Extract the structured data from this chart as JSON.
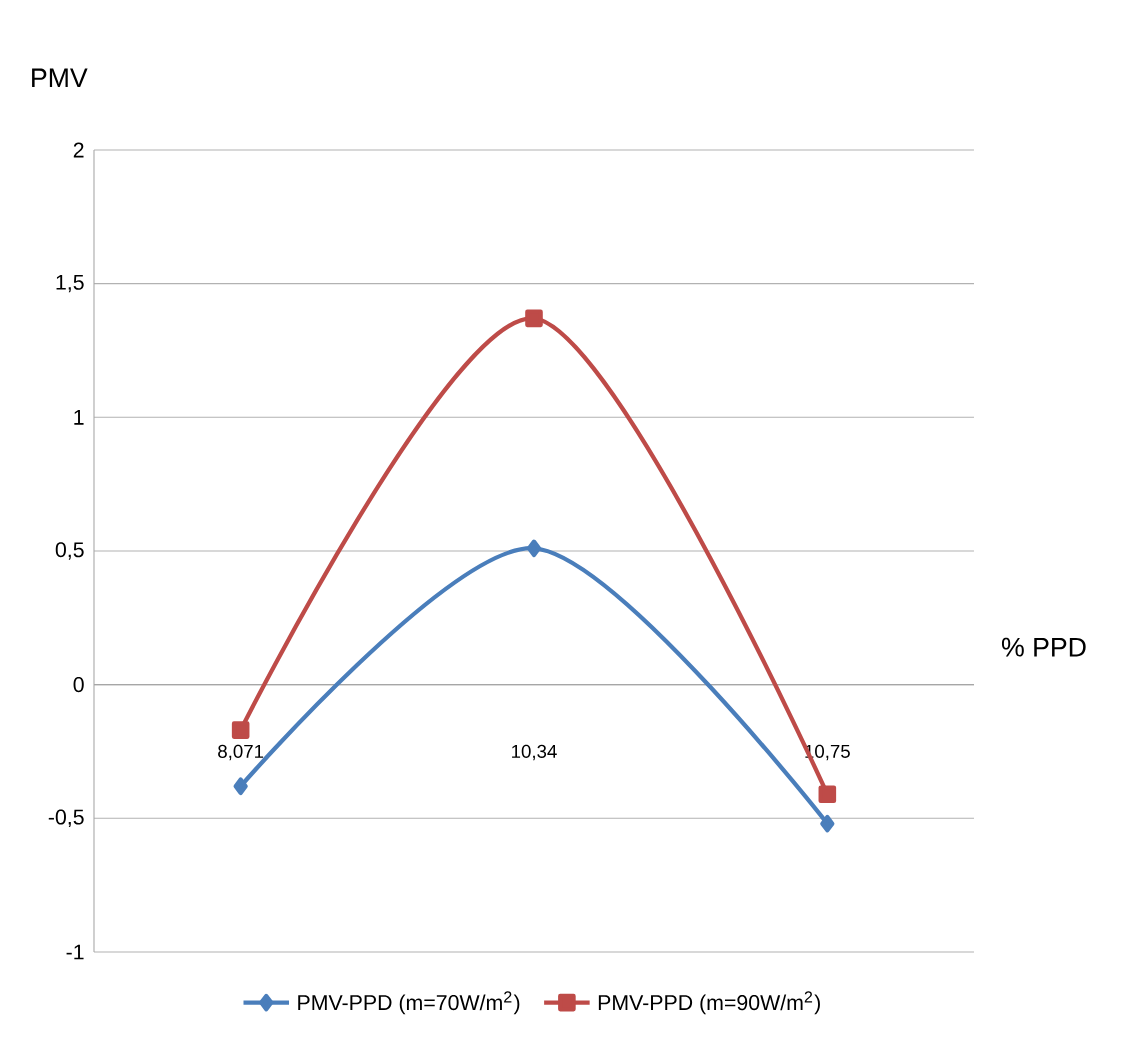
{
  "chart_data": {
    "type": "line",
    "ylabel": "PMV",
    "xlabel": "% PPD",
    "categories": [
      "8,071",
      "10,34",
      "10,75"
    ],
    "series": [
      {
        "name": "PMV-PPD (m=70W/m$^{2}$)",
        "color": "#4a7ebb",
        "marker": "diamond",
        "values": [
          -0.38,
          0.51,
          -0.52
        ]
      },
      {
        "name": "PMV-PPD (m=90W/m$^{2}$)",
        "color": "#be4b48",
        "marker": "square",
        "values": [
          -0.17,
          1.37,
          -0.41
        ]
      }
    ],
    "ylim": [
      -1,
      2
    ],
    "yticks": [
      -1,
      {
        "value": -0.5,
        "label": "-0,5"
      },
      0,
      {
        "value": 0.5,
        "label": "0,5"
      },
      1,
      {
        "value": 1.5,
        "label": "1,5"
      },
      2
    ],
    "grid": "y",
    "legend": "bottom",
    "line_style": "solid"
  }
}
